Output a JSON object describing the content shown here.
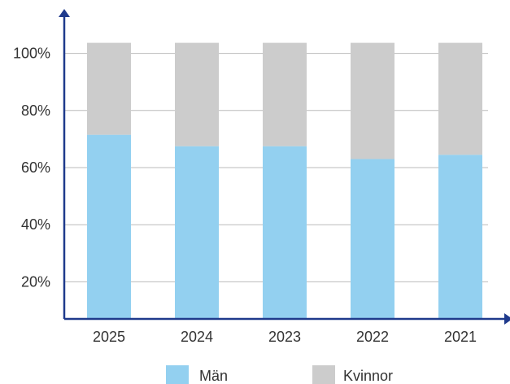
{
  "chart_data": {
    "type": "bar",
    "stacked": true,
    "percent": true,
    "categories": [
      "2025",
      "2024",
      "2023",
      "2022",
      "2021"
    ],
    "series": [
      {
        "name": "Män",
        "values": [
          71.5,
          67.5,
          67.5,
          63,
          64.5
        ],
        "color": "#93d0f0"
      },
      {
        "name": "Kvinnor",
        "values": [
          28.5,
          32.5,
          32.5,
          37,
          35.5
        ],
        "color": "#cccccc"
      }
    ],
    "yticks": [
      "20%",
      "40%",
      "60%",
      "80%",
      "100%"
    ],
    "ytick_values": [
      20,
      40,
      60,
      80,
      100
    ],
    "ylim": [
      7,
      113
    ],
    "grid": true,
    "legend_position": "bottom",
    "axis_color": "#1f3a8c",
    "grid_color": "#bbbbbb"
  }
}
